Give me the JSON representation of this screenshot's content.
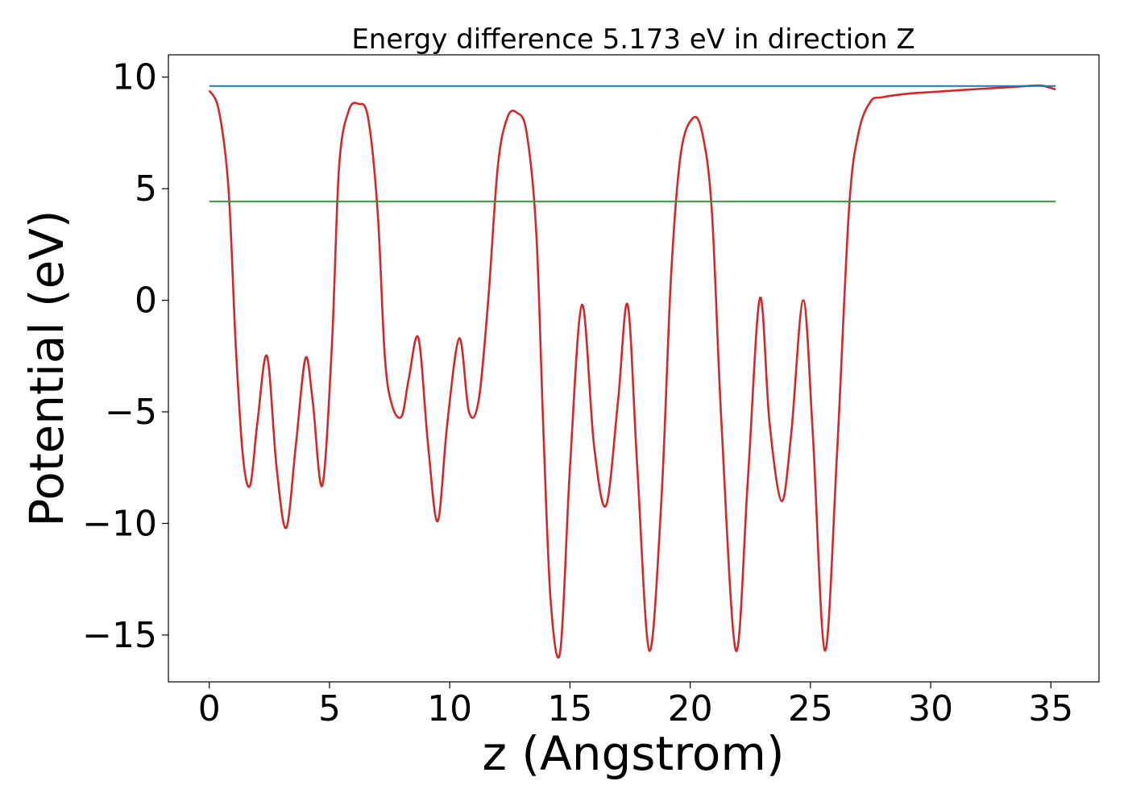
{
  "chart_data": {
    "type": "line",
    "title": "Energy difference 5.173 eV in direction Z",
    "xlabel": "z (Angstrom)",
    "ylabel": "Potential (eV)",
    "xlim": [
      -1.7,
      37.0
    ],
    "ylim": [
      -17.1,
      11.0
    ],
    "x_ticks": [
      0,
      5,
      10,
      15,
      20,
      25,
      30,
      35
    ],
    "x_tick_labels": [
      "0",
      "5",
      "10",
      "15",
      "20",
      "25",
      "30",
      "35"
    ],
    "y_ticks": [
      -15,
      -10,
      -5,
      0,
      5,
      10
    ],
    "y_tick_labels": [
      "−15",
      "−10",
      "−5",
      "0",
      "5",
      "10"
    ],
    "grid": false,
    "legend": false,
    "series": [
      {
        "color": "#1f77b4",
        "style": "horizontal",
        "x": [
          0.0,
          35.2
        ],
        "y": [
          9.6,
          9.6
        ]
      },
      {
        "color": "#2ca02c",
        "style": "horizontal",
        "x": [
          0.0,
          35.2
        ],
        "y": [
          4.43,
          4.43
        ]
      },
      {
        "color": "#d62728",
        "style": "smooth",
        "x": [
          0.0,
          0.4,
          0.8,
          1.1,
          1.4,
          1.7,
          2.0,
          2.4,
          2.8,
          3.2,
          3.6,
          4.0,
          4.3,
          4.7,
          5.1,
          5.4,
          5.8,
          6.2,
          6.6,
          7.0,
          7.3,
          7.6,
          8.0,
          8.3,
          8.7,
          9.1,
          9.5,
          9.9,
          10.4,
          10.8,
          11.2,
          11.6,
          12.0,
          12.4,
          12.8,
          13.2,
          13.6,
          13.9,
          14.2,
          14.6,
          15.0,
          15.5,
          16.0,
          16.5,
          17.0,
          17.4,
          17.8,
          18.3,
          18.8,
          19.2,
          19.6,
          20.1,
          20.5,
          20.9,
          21.3,
          21.9,
          22.4,
          22.9,
          23.3,
          23.8,
          24.2,
          24.7,
          25.1,
          25.6,
          26.1,
          26.6,
          27.0,
          27.5,
          28.0,
          29.0,
          30.0,
          31.0,
          32.0,
          33.0,
          34.0,
          34.6,
          35.2
        ],
        "y": [
          9.4,
          8.5,
          5.0,
          -2.0,
          -7.0,
          -8.3,
          -5.5,
          -2.5,
          -7.5,
          -10.2,
          -6.5,
          -2.6,
          -4.5,
          -8.3,
          -2.0,
          6.0,
          8.5,
          8.8,
          8.2,
          4.0,
          -2.5,
          -4.7,
          -5.2,
          -3.5,
          -1.7,
          -6.5,
          -9.9,
          -5.5,
          -1.7,
          -5.0,
          -4.5,
          0.0,
          6.0,
          8.2,
          8.4,
          7.5,
          3.0,
          -6.0,
          -13.5,
          -15.7,
          -7.5,
          -0.2,
          -6.5,
          -9.2,
          -4.5,
          -0.2,
          -7.5,
          -15.7,
          -9.0,
          1.0,
          6.5,
          8.15,
          7.5,
          4.0,
          -5.5,
          -15.7,
          -8.0,
          0.1,
          -5.5,
          -9.0,
          -6.0,
          0.0,
          -6.0,
          -15.7,
          -7.0,
          4.0,
          7.5,
          8.9,
          9.1,
          9.25,
          9.33,
          9.4,
          9.47,
          9.53,
          9.6,
          9.62,
          9.45
        ]
      }
    ]
  }
}
